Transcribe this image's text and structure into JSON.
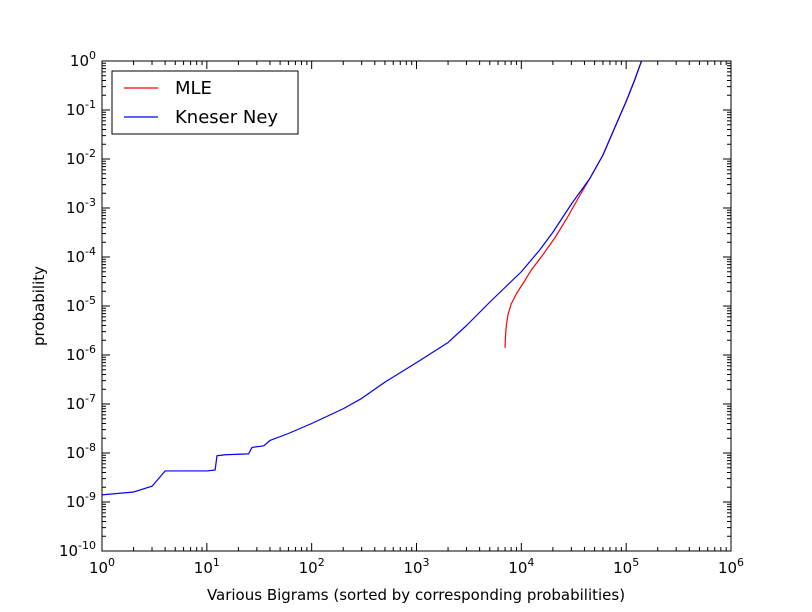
{
  "chart_data": {
    "type": "line",
    "xlabel": "Various Bigrams (sorted by corresponding probabilities)",
    "ylabel": "probability",
    "x_scale": "log",
    "y_scale": "log",
    "xlim": [
      1,
      1000000
    ],
    "ylim": [
      1e-10,
      1
    ],
    "x_ticks": [
      {
        "base": "10",
        "exp": "0",
        "value": 1
      },
      {
        "base": "10",
        "exp": "1",
        "value": 10
      },
      {
        "base": "10",
        "exp": "2",
        "value": 100
      },
      {
        "base": "10",
        "exp": "3",
        "value": 1000
      },
      {
        "base": "10",
        "exp": "4",
        "value": 10000
      },
      {
        "base": "10",
        "exp": "5",
        "value": 100000
      },
      {
        "base": "10",
        "exp": "6",
        "value": 1000000
      }
    ],
    "y_ticks": [
      {
        "base": "10",
        "exp": "-10",
        "value": 1e-10
      },
      {
        "base": "10",
        "exp": "-9",
        "value": 1e-09
      },
      {
        "base": "10",
        "exp": "-8",
        "value": 1e-08
      },
      {
        "base": "10",
        "exp": "-7",
        "value": 1e-07
      },
      {
        "base": "10",
        "exp": "-6",
        "value": 1e-06
      },
      {
        "base": "10",
        "exp": "-5",
        "value": 1e-05
      },
      {
        "base": "10",
        "exp": "-4",
        "value": 0.0001
      },
      {
        "base": "10",
        "exp": "-3",
        "value": 0.001
      },
      {
        "base": "10",
        "exp": "-2",
        "value": 0.01
      },
      {
        "base": "10",
        "exp": "-1",
        "value": 0.1
      },
      {
        "base": "10",
        "exp": "0",
        "value": 1
      }
    ],
    "grid": false,
    "legend": {
      "position": "top-left",
      "entries": [
        "MLE",
        "Kneser Ney"
      ]
    },
    "series": [
      {
        "name": "MLE",
        "color": "#ff0000",
        "points": [
          [
            7000,
            1.4e-06
          ],
          [
            7030,
            2e-06
          ],
          [
            7100,
            3e-06
          ],
          [
            7250,
            4.5e-06
          ],
          [
            7500,
            7e-06
          ],
          [
            8000,
            1.1e-05
          ],
          [
            9000,
            1.8e-05
          ],
          [
            10500,
            3e-05
          ],
          [
            12500,
            5.5e-05
          ],
          [
            16000,
            0.00011
          ],
          [
            21000,
            0.00025
          ],
          [
            27000,
            0.0006
          ],
          [
            35000,
            0.0016
          ],
          [
            45000,
            0.004
          ],
          [
            60000,
            0.012
          ],
          [
            80000,
            0.05
          ],
          [
            100000,
            0.15
          ],
          [
            120000,
            0.4
          ],
          [
            140000,
            1.0
          ]
        ]
      },
      {
        "name": "Kneser Ney",
        "color": "#0000ff",
        "points": [
          [
            1,
            1.4e-09
          ],
          [
            2,
            1.6e-09
          ],
          [
            3,
            2.1e-09
          ],
          [
            4,
            4.3e-09
          ],
          [
            10,
            4.3e-09
          ],
          [
            12,
            4.5e-09
          ],
          [
            12.5,
            8.8e-09
          ],
          [
            15,
            9.2e-09
          ],
          [
            25,
            9.6e-09
          ],
          [
            27,
            1.3e-08
          ],
          [
            35,
            1.4e-08
          ],
          [
            40,
            1.8e-08
          ],
          [
            60,
            2.5e-08
          ],
          [
            100,
            4e-08
          ],
          [
            200,
            8e-08
          ],
          [
            300,
            1.3e-07
          ],
          [
            500,
            2.8e-07
          ],
          [
            1000,
            7e-07
          ],
          [
            2000,
            1.8e-06
          ],
          [
            3000,
            4e-06
          ],
          [
            5000,
            1.2e-05
          ],
          [
            7000,
            2.4e-05
          ],
          [
            10000,
            5e-05
          ],
          [
            15000,
            0.00014
          ],
          [
            20000,
            0.00032
          ],
          [
            30000,
            0.0012
          ],
          [
            45000,
            0.004
          ],
          [
            60000,
            0.012
          ],
          [
            80000,
            0.05
          ],
          [
            100000,
            0.15
          ],
          [
            120000,
            0.4
          ],
          [
            140000,
            1.0
          ]
        ]
      }
    ]
  }
}
